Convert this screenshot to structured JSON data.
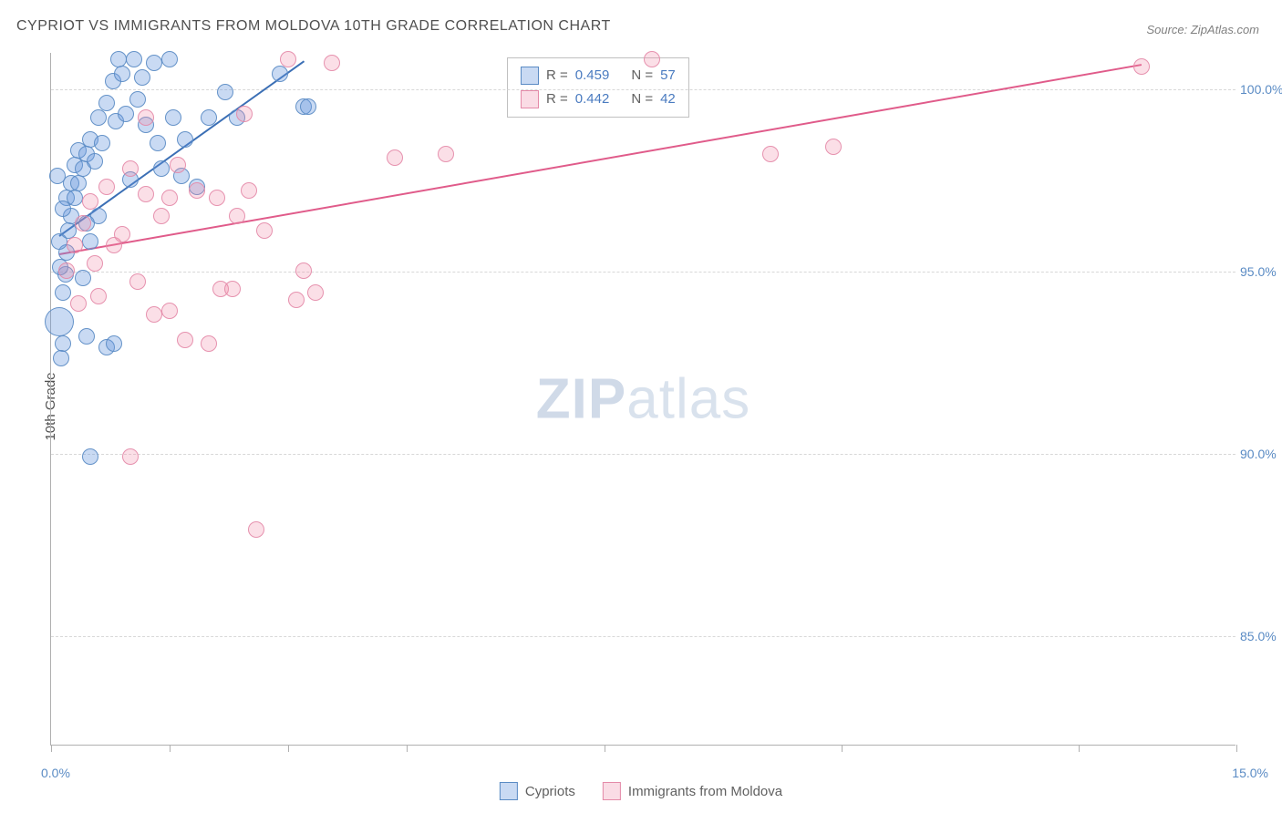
{
  "title": "CYPRIOT VS IMMIGRANTS FROM MOLDOVA 10TH GRADE CORRELATION CHART",
  "source": "Source: ZipAtlas.com",
  "y_axis_label": "10th Grade",
  "watermark_zip": "ZIP",
  "watermark_atlas": "atlas",
  "chart": {
    "type": "scatter",
    "background_color": "#ffffff",
    "grid_color": "#d8d8d8",
    "axis_color": "#b0b0b0",
    "text_color": "#505050",
    "tick_label_color": "#5a8bc4",
    "xlim": [
      0,
      15
    ],
    "ylim": [
      82,
      101
    ],
    "y_ticks": [
      {
        "value": 85.0,
        "label": "85.0%"
      },
      {
        "value": 90.0,
        "label": "90.0%"
      },
      {
        "value": 95.0,
        "label": "95.0%"
      },
      {
        "value": 100.0,
        "label": "100.0%"
      }
    ],
    "x_ticks": [
      {
        "value": 0.0,
        "label": "0.0%",
        "show_label": true
      },
      {
        "value": 1.5,
        "label": "",
        "show_label": false
      },
      {
        "value": 3.0,
        "label": "",
        "show_label": false
      },
      {
        "value": 4.5,
        "label": "",
        "show_label": false
      },
      {
        "value": 7.0,
        "label": "",
        "show_label": false
      },
      {
        "value": 10.0,
        "label": "",
        "show_label": false
      },
      {
        "value": 13.0,
        "label": "",
        "show_label": false
      },
      {
        "value": 15.0,
        "label": "15.0%",
        "show_label": true
      }
    ],
    "series": [
      {
        "name": "Cypriots",
        "color_fill": "rgba(100,150,220,0.35)",
        "color_stroke": "#5a8bc4",
        "marker_radius": 9,
        "trend": {
          "x1": 0.1,
          "y1": 96.0,
          "x2": 3.2,
          "y2": 100.8,
          "color": "#3b6fb5",
          "width": 2
        },
        "stats": {
          "r_label": "R =",
          "r_value": "0.459",
          "n_label": "N =",
          "n_value": "57"
        },
        "points": [
          {
            "x": 0.15,
            "y": 94.4,
            "r": 9
          },
          {
            "x": 0.18,
            "y": 94.9,
            "r": 9
          },
          {
            "x": 0.2,
            "y": 95.5,
            "r": 9
          },
          {
            "x": 0.22,
            "y": 96.1,
            "r": 9
          },
          {
            "x": 0.25,
            "y": 96.5,
            "r": 9
          },
          {
            "x": 0.2,
            "y": 97.0,
            "r": 9
          },
          {
            "x": 0.3,
            "y": 97.0,
            "r": 9
          },
          {
            "x": 0.25,
            "y": 97.4,
            "r": 9
          },
          {
            "x": 0.35,
            "y": 97.4,
            "r": 9
          },
          {
            "x": 0.3,
            "y": 97.9,
            "r": 9
          },
          {
            "x": 0.4,
            "y": 97.8,
            "r": 9
          },
          {
            "x": 0.35,
            "y": 98.3,
            "r": 9
          },
          {
            "x": 0.45,
            "y": 98.2,
            "r": 9
          },
          {
            "x": 0.5,
            "y": 98.6,
            "r": 9
          },
          {
            "x": 0.55,
            "y": 98.0,
            "r": 9
          },
          {
            "x": 0.6,
            "y": 99.2,
            "r": 9
          },
          {
            "x": 0.65,
            "y": 98.5,
            "r": 9
          },
          {
            "x": 0.7,
            "y": 99.6,
            "r": 9
          },
          {
            "x": 0.78,
            "y": 100.2,
            "r": 9
          },
          {
            "x": 0.82,
            "y": 99.1,
            "r": 9
          },
          {
            "x": 0.85,
            "y": 100.8,
            "r": 9
          },
          {
            "x": 0.9,
            "y": 100.4,
            "r": 9
          },
          {
            "x": 0.95,
            "y": 99.3,
            "r": 9
          },
          {
            "x": 1.05,
            "y": 100.8,
            "r": 9
          },
          {
            "x": 1.1,
            "y": 99.7,
            "r": 9
          },
          {
            "x": 1.15,
            "y": 100.3,
            "r": 9
          },
          {
            "x": 1.2,
            "y": 99.0,
            "r": 9
          },
          {
            "x": 1.3,
            "y": 100.7,
            "r": 9
          },
          {
            "x": 1.35,
            "y": 98.5,
            "r": 9
          },
          {
            "x": 1.4,
            "y": 97.8,
            "r": 9
          },
          {
            "x": 1.5,
            "y": 100.8,
            "r": 9
          },
          {
            "x": 1.55,
            "y": 99.2,
            "r": 9
          },
          {
            "x": 1.65,
            "y": 97.6,
            "r": 9
          },
          {
            "x": 1.7,
            "y": 98.6,
            "r": 9
          },
          {
            "x": 1.85,
            "y": 97.3,
            "r": 9
          },
          {
            "x": 2.0,
            "y": 99.2,
            "r": 9
          },
          {
            "x": 2.2,
            "y": 99.9,
            "r": 9
          },
          {
            "x": 2.35,
            "y": 99.2,
            "r": 9
          },
          {
            "x": 2.9,
            "y": 100.4,
            "r": 9
          },
          {
            "x": 3.2,
            "y": 99.5,
            "r": 9
          },
          {
            "x": 3.25,
            "y": 99.5,
            "r": 9
          },
          {
            "x": 0.15,
            "y": 96.7,
            "r": 9
          },
          {
            "x": 0.12,
            "y": 95.1,
            "r": 9
          },
          {
            "x": 0.1,
            "y": 95.8,
            "r": 9
          },
          {
            "x": 0.4,
            "y": 94.8,
            "r": 9
          },
          {
            "x": 0.5,
            "y": 95.8,
            "r": 9
          },
          {
            "x": 0.6,
            "y": 96.5,
            "r": 9
          },
          {
            "x": 0.7,
            "y": 92.9,
            "r": 9
          },
          {
            "x": 0.8,
            "y": 93.0,
            "r": 9
          },
          {
            "x": 0.45,
            "y": 93.2,
            "r": 9
          },
          {
            "x": 0.5,
            "y": 89.9,
            "r": 9
          },
          {
            "x": 0.1,
            "y": 93.6,
            "r": 16
          },
          {
            "x": 0.15,
            "y": 93.0,
            "r": 9
          },
          {
            "x": 0.13,
            "y": 92.6,
            "r": 9
          },
          {
            "x": 0.08,
            "y": 97.6,
            "r": 9
          },
          {
            "x": 0.45,
            "y": 96.3,
            "r": 9
          },
          {
            "x": 1.0,
            "y": 97.5,
            "r": 9
          }
        ]
      },
      {
        "name": "Immigrants from Moldova",
        "color_fill": "rgba(240,140,170,0.28)",
        "color_stroke": "#e48aa8",
        "marker_radius": 9,
        "trend": {
          "x1": 0.1,
          "y1": 95.5,
          "x2": 13.8,
          "y2": 100.7,
          "color": "#e05b8a",
          "width": 2
        },
        "stats": {
          "r_label": "R =",
          "r_value": "0.442",
          "n_label": "N =",
          "n_value": "42"
        },
        "points": [
          {
            "x": 0.2,
            "y": 95.0,
            "r": 9
          },
          {
            "x": 0.3,
            "y": 95.7,
            "r": 9
          },
          {
            "x": 0.35,
            "y": 94.1,
            "r": 9
          },
          {
            "x": 0.4,
            "y": 96.3,
            "r": 9
          },
          {
            "x": 0.5,
            "y": 96.9,
            "r": 9
          },
          {
            "x": 0.55,
            "y": 95.2,
            "r": 9
          },
          {
            "x": 0.7,
            "y": 97.3,
            "r": 9
          },
          {
            "x": 0.8,
            "y": 95.7,
            "r": 9
          },
          {
            "x": 0.9,
            "y": 96.0,
            "r": 9
          },
          {
            "x": 1.0,
            "y": 97.8,
            "r": 9
          },
          {
            "x": 1.1,
            "y": 94.7,
            "r": 9
          },
          {
            "x": 1.2,
            "y": 97.1,
            "r": 9
          },
          {
            "x": 1.3,
            "y": 93.8,
            "r": 9
          },
          {
            "x": 1.4,
            "y": 96.5,
            "r": 9
          },
          {
            "x": 1.5,
            "y": 97.0,
            "r": 9
          },
          {
            "x": 1.5,
            "y": 93.9,
            "r": 9
          },
          {
            "x": 1.6,
            "y": 97.9,
            "r": 9
          },
          {
            "x": 1.7,
            "y": 93.1,
            "r": 9
          },
          {
            "x": 1.85,
            "y": 97.2,
            "r": 9
          },
          {
            "x": 2.0,
            "y": 93.0,
            "r": 9
          },
          {
            "x": 2.1,
            "y": 97.0,
            "r": 9
          },
          {
            "x": 2.15,
            "y": 94.5,
            "r": 9
          },
          {
            "x": 2.3,
            "y": 94.5,
            "r": 9
          },
          {
            "x": 2.35,
            "y": 96.5,
            "r": 9
          },
          {
            "x": 2.45,
            "y": 99.3,
            "r": 9
          },
          {
            "x": 2.5,
            "y": 97.2,
            "r": 9
          },
          {
            "x": 2.7,
            "y": 96.1,
            "r": 9
          },
          {
            "x": 3.0,
            "y": 100.8,
            "r": 9
          },
          {
            "x": 3.1,
            "y": 94.2,
            "r": 9
          },
          {
            "x": 3.2,
            "y": 95.0,
            "r": 9
          },
          {
            "x": 3.35,
            "y": 94.4,
            "r": 9
          },
          {
            "x": 3.55,
            "y": 100.7,
            "r": 9
          },
          {
            "x": 4.35,
            "y": 98.1,
            "r": 9
          },
          {
            "x": 5.0,
            "y": 98.2,
            "r": 9
          },
          {
            "x": 7.6,
            "y": 100.8,
            "r": 9
          },
          {
            "x": 9.1,
            "y": 98.2,
            "r": 9
          },
          {
            "x": 9.9,
            "y": 98.4,
            "r": 9
          },
          {
            "x": 13.8,
            "y": 100.6,
            "r": 9
          },
          {
            "x": 1.0,
            "y": 89.9,
            "r": 9
          },
          {
            "x": 2.6,
            "y": 87.9,
            "r": 9
          },
          {
            "x": 1.2,
            "y": 99.2,
            "r": 9
          },
          {
            "x": 0.6,
            "y": 94.3,
            "r": 9
          }
        ]
      }
    ],
    "legend_bottom": [
      {
        "swatch": "blue",
        "label": "Cypriots"
      },
      {
        "swatch": "pink",
        "label": "Immigrants from Moldova"
      }
    ]
  }
}
